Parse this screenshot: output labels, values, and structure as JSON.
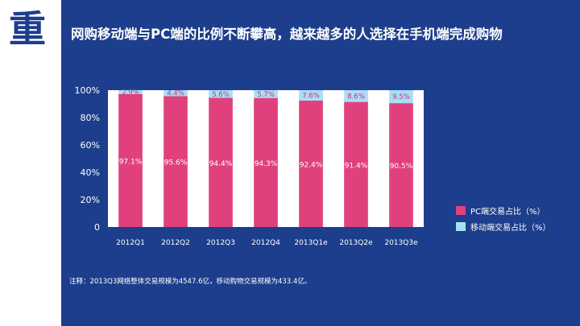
{
  "logo": {
    "text": "重"
  },
  "title": "网购移动端与PC端的比例不断攀高，越来越多的人选择在手机端完成购物",
  "note": "注释：2013Q3网络整体交易规模为4547.6亿，移动购物交易规模为433.4亿。",
  "colors": {
    "background": "#1d3e8c",
    "pc": "#e0417d",
    "mobile": "#a9def7",
    "plot_bg": "#ffffff",
    "pc_label": "#ffffff",
    "mobile_label": "#d02f7a"
  },
  "chart_data": {
    "type": "bar",
    "stacked": true,
    "categories": [
      "2012Q1",
      "2012Q2",
      "2012Q3",
      "2012Q4",
      "2013Q1e",
      "2013Q2e",
      "2013Q3e"
    ],
    "series": [
      {
        "name": "PC端交易占比（%）",
        "values": [
          97.1,
          95.6,
          94.4,
          94.3,
          92.4,
          91.4,
          90.5
        ],
        "labels": [
          "97.1%",
          "95.6%",
          "94.4%",
          "94.3%",
          "92.4%",
          "91.4%",
          "90.5%"
        ]
      },
      {
        "name": "移动端交易占比（%）",
        "values": [
          2.9,
          4.4,
          5.6,
          5.7,
          7.6,
          8.6,
          9.5
        ],
        "labels": [
          "2.9%",
          "4.4%",
          "5.6%",
          "5.7%",
          "7.6%",
          "8.6%",
          "9.5%"
        ]
      }
    ],
    "y_ticks": [
      "0",
      "20%",
      "40%",
      "60%",
      "80%",
      "100%"
    ],
    "ylim": [
      0,
      100
    ],
    "grid": false,
    "legend_position": "right"
  }
}
